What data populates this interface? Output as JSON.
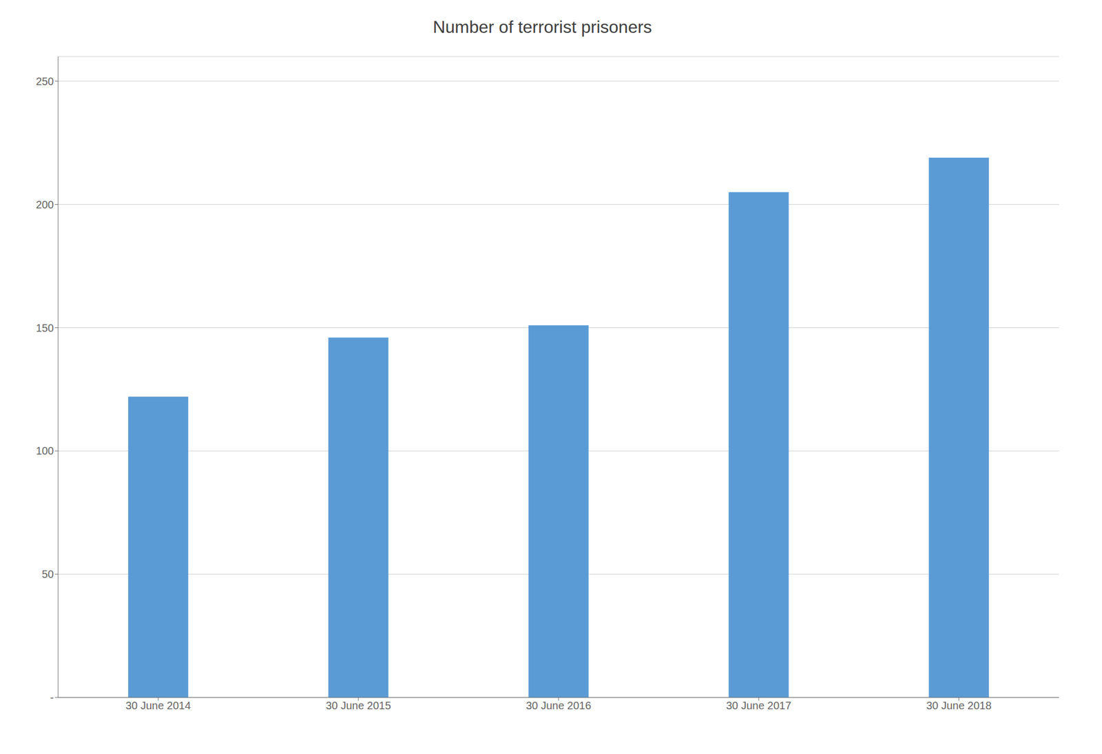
{
  "chart_data": {
    "type": "bar",
    "title": "Number of terrorist prisoners",
    "categories": [
      "30 June 2014",
      "30 June 2015",
      "30 June 2016",
      "30 June 2017",
      "30 June 2018"
    ],
    "values": [
      122,
      146,
      151,
      205,
      219
    ],
    "color": "#5B9BD5",
    "ylim": [
      0,
      260
    ],
    "yticks": [
      {
        "value": 0,
        "label": "-"
      },
      50,
      100,
      150,
      200,
      250
    ],
    "grid": true
  }
}
